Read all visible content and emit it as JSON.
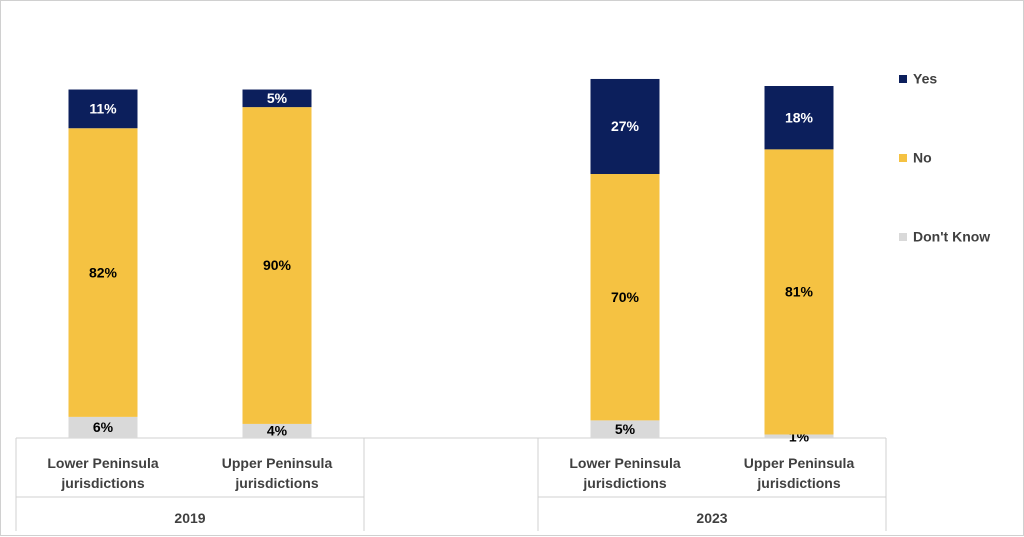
{
  "chart_data": {
    "type": "bar",
    "stacked": true,
    "groups": [
      {
        "label": "2019",
        "categories": [
          "Lower Peninsula jurisdictions",
          "Upper Peninsula jurisdictions"
        ]
      },
      {
        "label": "2023",
        "categories": [
          "Lower Peninsula jurisdictions",
          "Upper Peninsula jurisdictions"
        ]
      }
    ],
    "categories": [
      [
        "Lower Peninsula",
        "jurisdictions"
      ],
      [
        "Upper Peninsula",
        "jurisdictions"
      ],
      [
        "Lower Peninsula",
        "jurisdictions"
      ],
      [
        "Upper Peninsula",
        "jurisdictions"
      ]
    ],
    "series": [
      {
        "name": "Don't Know",
        "color": "#d9d9d9",
        "values": [
          6,
          4,
          5,
          1
        ],
        "labels": [
          "6%",
          "4%",
          "5%",
          "1%"
        ]
      },
      {
        "name": "No",
        "color": "#f5c242",
        "values": [
          82,
          90,
          70,
          81
        ],
        "labels": [
          "82%",
          "90%",
          "70%",
          "81%"
        ]
      },
      {
        "name": "Yes",
        "color": "#0c1f5c",
        "values": [
          11,
          5,
          27,
          18
        ],
        "labels": [
          "11%",
          "5%",
          "27%",
          "18%"
        ]
      }
    ],
    "legend": {
      "position": "right",
      "order": [
        "Yes",
        "No",
        "Don't Know"
      ]
    },
    "ylim": [
      0,
      100
    ],
    "grid": false
  }
}
